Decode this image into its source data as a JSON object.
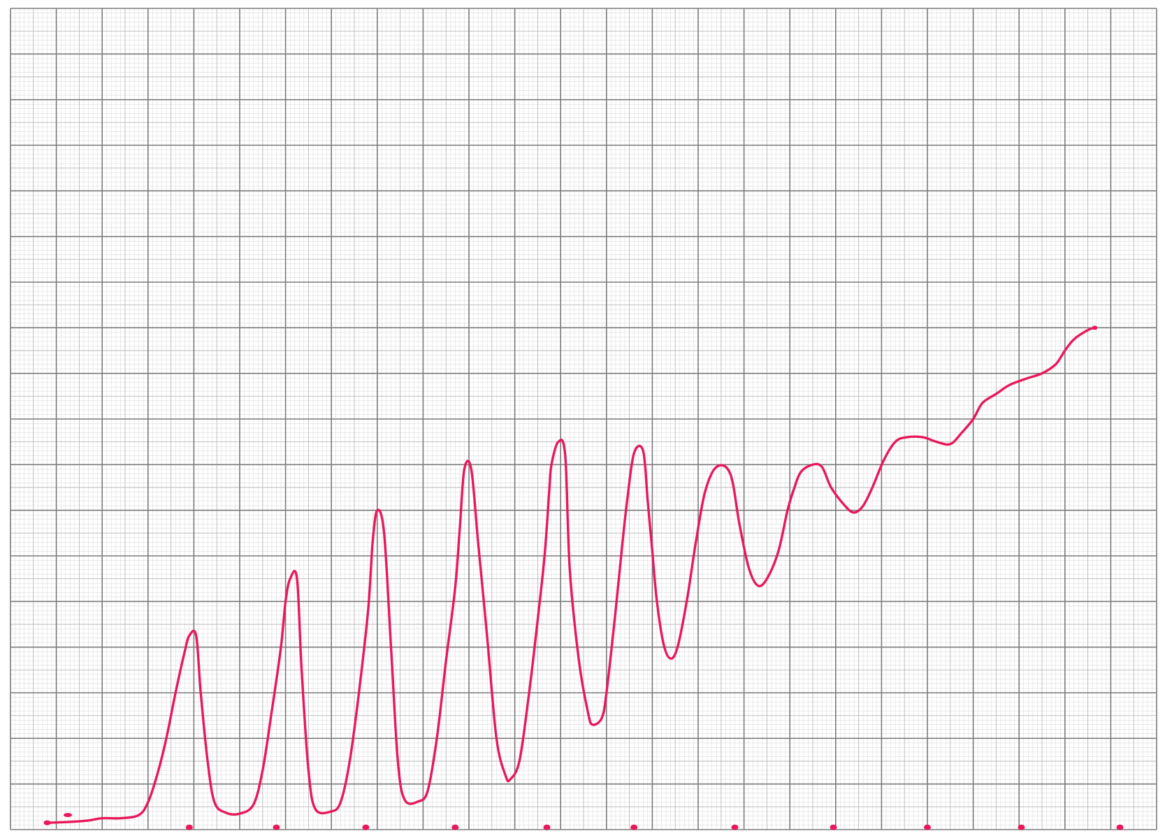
{
  "colors": {
    "paper": "#ffffff",
    "grid_fine": "#d6d6d6",
    "grid_mid": "#b8b8b8",
    "grid_major": "#7a7a7a",
    "trace": "#e8185a"
  },
  "chart_data": {
    "type": "line",
    "title": "",
    "xlabel": "",
    "ylabel": "",
    "grid": true,
    "legend": "none",
    "xlim": [
      0,
      25
    ],
    "ylim": [
      0,
      18
    ],
    "series": [
      {
        "values": [
          [
            0.8,
            0.15
          ],
          [
            1.3,
            0.17
          ],
          [
            1.7,
            0.2
          ],
          [
            2.0,
            0.25
          ],
          [
            2.4,
            0.25
          ],
          [
            2.8,
            0.32
          ],
          [
            3.0,
            0.6
          ],
          [
            3.2,
            1.2
          ],
          [
            3.4,
            2.0
          ],
          [
            3.6,
            3.0
          ],
          [
            3.8,
            3.9
          ],
          [
            3.9,
            4.25
          ],
          [
            4.05,
            4.25
          ],
          [
            4.15,
            3.0
          ],
          [
            4.3,
            1.5
          ],
          [
            4.45,
            0.6
          ],
          [
            4.7,
            0.37
          ],
          [
            5.0,
            0.35
          ],
          [
            5.3,
            0.55
          ],
          [
            5.5,
            1.3
          ],
          [
            5.7,
            2.6
          ],
          [
            5.9,
            4.0
          ],
          [
            6.0,
            5.0
          ],
          [
            6.1,
            5.5
          ],
          [
            6.25,
            5.5
          ],
          [
            6.35,
            3.5
          ],
          [
            6.5,
            1.3
          ],
          [
            6.65,
            0.45
          ],
          [
            7.0,
            0.4
          ],
          [
            7.2,
            0.6
          ],
          [
            7.4,
            1.5
          ],
          [
            7.6,
            3.0
          ],
          [
            7.8,
            4.8
          ],
          [
            7.9,
            6.3
          ],
          [
            8.0,
            7.0
          ],
          [
            8.15,
            6.5
          ],
          [
            8.3,
            4.0
          ],
          [
            8.45,
            1.5
          ],
          [
            8.6,
            0.65
          ],
          [
            8.9,
            0.62
          ],
          [
            9.1,
            0.85
          ],
          [
            9.3,
            2.0
          ],
          [
            9.5,
            3.7
          ],
          [
            9.7,
            5.3
          ],
          [
            9.8,
            6.6
          ],
          [
            9.9,
            7.9
          ],
          [
            10.05,
            7.9
          ],
          [
            10.2,
            6.3
          ],
          [
            10.4,
            4.2
          ],
          [
            10.6,
            2.0
          ],
          [
            10.8,
            1.18
          ],
          [
            10.9,
            1.1
          ],
          [
            11.1,
            1.5
          ],
          [
            11.3,
            2.9
          ],
          [
            11.5,
            4.6
          ],
          [
            11.65,
            6.0
          ],
          [
            11.75,
            7.4
          ],
          [
            11.8,
            8.0
          ],
          [
            11.95,
            8.5
          ],
          [
            12.1,
            8.2
          ],
          [
            12.2,
            5.7
          ],
          [
            12.4,
            3.7
          ],
          [
            12.6,
            2.55
          ],
          [
            12.7,
            2.3
          ],
          [
            12.9,
            2.45
          ],
          [
            13.0,
            3.0
          ],
          [
            13.2,
            4.8
          ],
          [
            13.35,
            6.3
          ],
          [
            13.45,
            7.2
          ],
          [
            13.6,
            8.25
          ],
          [
            13.8,
            8.3
          ],
          [
            13.9,
            7.2
          ],
          [
            14.0,
            6.1
          ],
          [
            14.1,
            5.0
          ],
          [
            14.25,
            4.05
          ],
          [
            14.4,
            3.75
          ],
          [
            14.55,
            4.0
          ],
          [
            14.75,
            5.0
          ],
          [
            14.95,
            6.3
          ],
          [
            15.15,
            7.4
          ],
          [
            15.4,
            7.95
          ],
          [
            15.7,
            7.8
          ],
          [
            15.9,
            6.7
          ],
          [
            16.1,
            5.75
          ],
          [
            16.3,
            5.35
          ],
          [
            16.5,
            5.5
          ],
          [
            16.75,
            6.1
          ],
          [
            16.95,
            7.0
          ],
          [
            17.1,
            7.5
          ],
          [
            17.25,
            7.85
          ],
          [
            17.5,
            8.0
          ],
          [
            17.7,
            7.95
          ],
          [
            17.9,
            7.5
          ],
          [
            18.2,
            7.1
          ],
          [
            18.4,
            6.95
          ],
          [
            18.6,
            7.1
          ],
          [
            18.8,
            7.5
          ],
          [
            19.05,
            8.1
          ],
          [
            19.3,
            8.5
          ],
          [
            19.55,
            8.6
          ],
          [
            19.9,
            8.6
          ],
          [
            20.2,
            8.5
          ],
          [
            20.5,
            8.45
          ],
          [
            20.75,
            8.7
          ],
          [
            21.0,
            9.0
          ],
          [
            21.2,
            9.35
          ],
          [
            21.5,
            9.55
          ],
          [
            21.8,
            9.75
          ],
          [
            22.2,
            9.9
          ],
          [
            22.5,
            10.0
          ],
          [
            22.8,
            10.2
          ],
          [
            23.0,
            10.5
          ],
          [
            23.2,
            10.75
          ],
          [
            23.5,
            10.95
          ],
          [
            23.65,
            11.0
          ]
        ]
      }
    ],
    "markers": {
      "y": 0.05,
      "x": [
        3.9,
        5.8,
        7.75,
        9.7,
        11.7,
        13.6,
        15.8,
        17.95,
        20.0,
        22.05,
        24.2
      ]
    },
    "start_marker": [
      1.25,
      0.32
    ]
  }
}
